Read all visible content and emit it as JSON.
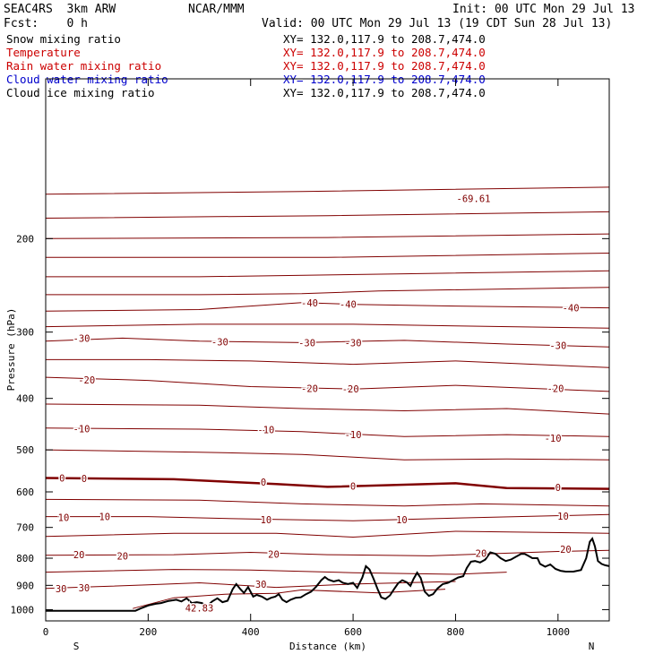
{
  "header": {
    "model": "SEAC4RS  3km ARW",
    "org": "NCAR/MMM",
    "init": "Init: 00 UTC Mon 29 Jul 13",
    "fcst": "Fcst:    0 h",
    "valid": "Valid: 00 UTC Mon 29 Jul 13 (19 CDT Sun 28 Jul 13)"
  },
  "fields": [
    {
      "name": "Snow mixing ratio",
      "color": "#000000",
      "xy": "XY= 132.0,117.9 to 208.7,474.0"
    },
    {
      "name": "Temperature",
      "color": "#cc0000",
      "xy": "XY= 132.0,117.9 to 208.7,474.0"
    },
    {
      "name": "Rain water mixing ratio",
      "color": "#cc0000",
      "xy": "XY= 132.0,117.9 to 208.7,474.0"
    },
    {
      "name": "Cloud water mixing ratio",
      "color": "#0000cc",
      "xy": "XY= 132.0,117.9 to 208.7,474.0"
    },
    {
      "name": "Cloud ice mixing ratio",
      "color": "#000000",
      "xy": "XY= 132.0,117.9 to 208.7,474.0"
    }
  ],
  "chart_data": {
    "type": "line",
    "xlabel": "Distance (km)",
    "ylabel": "Pressure (hPa)",
    "xlim": [
      0,
      1100
    ],
    "ylim": [
      1050,
      100
    ],
    "y_scale": "log",
    "xticks": [
      0,
      200,
      400,
      600,
      800,
      1000
    ],
    "yticks": [
      200,
      300,
      400,
      500,
      600,
      700,
      800,
      900,
      1000
    ],
    "end_labels": {
      "left": "S",
      "right": "N"
    },
    "isotherm_color": "#800000",
    "isotherm_interval": 5,
    "freezing_level_bold": true,
    "isotherms": [
      {
        "temp": -70,
        "p": [
          [
            0,
            165
          ],
          [
            500,
            163
          ],
          [
            1100,
            160
          ]
        ]
      },
      {
        "temp": -65,
        "p": [
          [
            0,
            183
          ],
          [
            550,
            181
          ],
          [
            1100,
            178
          ]
        ]
      },
      {
        "temp": -60,
        "p": [
          [
            0,
            200
          ],
          [
            550,
            199
          ],
          [
            1100,
            196
          ]
        ]
      },
      {
        "temp": -55,
        "p": [
          [
            0,
            217
          ],
          [
            550,
            217
          ],
          [
            1100,
            213
          ]
        ]
      },
      {
        "temp": -50,
        "p": [
          [
            0,
            236
          ],
          [
            300,
            236
          ],
          [
            700,
            233
          ],
          [
            1100,
            230
          ]
        ]
      },
      {
        "temp": -45,
        "p": [
          [
            0,
            255
          ],
          [
            300,
            255
          ],
          [
            500,
            254
          ],
          [
            650,
            251
          ],
          [
            1100,
            247
          ]
        ]
      },
      {
        "temp": -40,
        "p": [
          [
            0,
            274
          ],
          [
            300,
            272
          ],
          [
            500,
            264
          ],
          [
            600,
            266
          ],
          [
            800,
            268
          ],
          [
            1100,
            270
          ]
        ]
      },
      {
        "temp": -35,
        "p": [
          [
            0,
            293
          ],
          [
            300,
            290
          ],
          [
            600,
            290
          ],
          [
            800,
            292
          ],
          [
            1100,
            295
          ]
        ]
      },
      {
        "temp": -30,
        "p": [
          [
            0,
            312
          ],
          [
            150,
            308
          ],
          [
            300,
            312
          ],
          [
            500,
            314
          ],
          [
            700,
            311
          ],
          [
            900,
            316
          ],
          [
            1100,
            320
          ]
        ]
      },
      {
        "temp": -25,
        "p": [
          [
            0,
            338
          ],
          [
            200,
            338
          ],
          [
            400,
            340
          ],
          [
            600,
            345
          ],
          [
            800,
            340
          ],
          [
            1100,
            350
          ]
        ]
      },
      {
        "temp": -20,
        "p": [
          [
            0,
            365
          ],
          [
            200,
            370
          ],
          [
            400,
            380
          ],
          [
            600,
            384
          ],
          [
            800,
            378
          ],
          [
            1100,
            388
          ]
        ]
      },
      {
        "temp": -15,
        "p": [
          [
            0,
            410
          ],
          [
            300,
            412
          ],
          [
            500,
            418
          ],
          [
            700,
            422
          ],
          [
            900,
            418
          ],
          [
            1100,
            428
          ]
        ]
      },
      {
        "temp": -10,
        "p": [
          [
            0,
            455
          ],
          [
            300,
            457
          ],
          [
            500,
            462
          ],
          [
            700,
            472
          ],
          [
            900,
            468
          ],
          [
            1100,
            472
          ]
        ]
      },
      {
        "temp": -5,
        "p": [
          [
            0,
            500
          ],
          [
            300,
            505
          ],
          [
            500,
            510
          ],
          [
            700,
            522
          ],
          [
            900,
            520
          ],
          [
            1100,
            522
          ]
        ]
      },
      {
        "temp": 0,
        "p": [
          [
            0,
            565
          ],
          [
            250,
            568
          ],
          [
            450,
            580
          ],
          [
            550,
            587
          ],
          [
            800,
            578
          ],
          [
            900,
            590
          ],
          [
            1100,
            592
          ]
        ]
      },
      {
        "temp": 5,
        "p": [
          [
            0,
            620
          ],
          [
            300,
            622
          ],
          [
            500,
            632
          ],
          [
            700,
            638
          ],
          [
            850,
            632
          ],
          [
            1100,
            638
          ]
        ]
      },
      {
        "temp": 10,
        "p": [
          [
            0,
            668
          ],
          [
            200,
            668
          ],
          [
            400,
            675
          ],
          [
            600,
            680
          ],
          [
            800,
            672
          ],
          [
            1100,
            662
          ]
        ]
      },
      {
        "temp": 15,
        "p": [
          [
            0,
            728
          ],
          [
            250,
            718
          ],
          [
            450,
            718
          ],
          [
            600,
            730
          ],
          [
            800,
            712
          ],
          [
            1100,
            718
          ]
        ]
      },
      {
        "temp": 20,
        "p": [
          [
            0,
            790
          ],
          [
            250,
            788
          ],
          [
            400,
            780
          ],
          [
            550,
            788
          ],
          [
            750,
            792
          ],
          [
            1000,
            777
          ],
          [
            1100,
            773
          ]
        ]
      },
      {
        "temp": 25,
        "p": [
          [
            0,
            850
          ],
          [
            250,
            840
          ],
          [
            400,
            842
          ],
          [
            600,
            852
          ],
          [
            800,
            858
          ],
          [
            900,
            850
          ]
        ]
      },
      {
        "temp": 30,
        "p": [
          [
            0,
            912
          ],
          [
            100,
            905
          ],
          [
            200,
            898
          ],
          [
            300,
            890
          ],
          [
            450,
            908
          ],
          [
            600,
            895
          ],
          [
            800,
            885
          ]
        ]
      },
      {
        "temp": 35,
        "p": [
          [
            170,
            995
          ],
          [
            250,
            950
          ],
          [
            350,
            935
          ],
          [
            450,
            932
          ],
          [
            500,
            918
          ],
          [
            650,
            930
          ],
          [
            780,
            915
          ]
        ]
      }
    ],
    "contour_labels": [
      {
        "text": "-69.61",
        "x": 835,
        "p": 168
      },
      {
        "text": "-40",
        "x": 515,
        "p": 264
      },
      {
        "text": "-40",
        "x": 590,
        "p": 266
      },
      {
        "text": "-40",
        "x": 1025,
        "p": 270
      },
      {
        "text": "-30",
        "x": 70,
        "p": 308
      },
      {
        "text": "-30",
        "x": 340,
        "p": 313
      },
      {
        "text": "-30",
        "x": 510,
        "p": 314
      },
      {
        "text": "-30",
        "x": 600,
        "p": 314
      },
      {
        "text": "-30",
        "x": 1000,
        "p": 318
      },
      {
        "text": "-20",
        "x": 80,
        "p": 369
      },
      {
        "text": "-20",
        "x": 515,
        "p": 383
      },
      {
        "text": "-20",
        "x": 595,
        "p": 384
      },
      {
        "text": "-20",
        "x": 995,
        "p": 383
      },
      {
        "text": "-10",
        "x": 70,
        "p": 456
      },
      {
        "text": "-10",
        "x": 430,
        "p": 458
      },
      {
        "text": "-10",
        "x": 600,
        "p": 468
      },
      {
        "text": "-10",
        "x": 990,
        "p": 475
      },
      {
        "text": "0",
        "x": 32,
        "p": 565
      },
      {
        "text": "0",
        "x": 75,
        "p": 566
      },
      {
        "text": "0",
        "x": 425,
        "p": 575
      },
      {
        "text": "0",
        "x": 600,
        "p": 585
      },
      {
        "text": "0",
        "x": 1000,
        "p": 588
      },
      {
        "text": "10",
        "x": 35,
        "p": 670
      },
      {
        "text": "10",
        "x": 115,
        "p": 667
      },
      {
        "text": "10",
        "x": 430,
        "p": 677
      },
      {
        "text": "10",
        "x": 695,
        "p": 677
      },
      {
        "text": "10",
        "x": 1010,
        "p": 666
      },
      {
        "text": "20",
        "x": 65,
        "p": 788
      },
      {
        "text": "20",
        "x": 150,
        "p": 792
      },
      {
        "text": "20",
        "x": 445,
        "p": 786
      },
      {
        "text": "20",
        "x": 850,
        "p": 783
      },
      {
        "text": "20",
        "x": 1015,
        "p": 770
      },
      {
        "text": "30",
        "x": 30,
        "p": 913
      },
      {
        "text": "30",
        "x": 75,
        "p": 910
      },
      {
        "text": "30",
        "x": 420,
        "p": 895
      },
      {
        "text": "42.83",
        "x": 300,
        "p": 992
      }
    ],
    "terrain": [
      [
        0,
        1005
      ],
      [
        175,
        1005
      ],
      [
        185,
        995
      ],
      [
        200,
        982
      ],
      [
        215,
        975
      ],
      [
        225,
        972
      ],
      [
        240,
        963
      ],
      [
        255,
        958
      ],
      [
        265,
        965
      ],
      [
        275,
        952
      ],
      [
        285,
        972
      ],
      [
        295,
        968
      ],
      [
        305,
        972
      ],
      [
        315,
        985
      ],
      [
        325,
        965
      ],
      [
        335,
        952
      ],
      [
        345,
        968
      ],
      [
        355,
        962
      ],
      [
        365,
        915
      ],
      [
        372,
        895
      ],
      [
        380,
        915
      ],
      [
        387,
        930
      ],
      [
        395,
        907
      ],
      [
        405,
        945
      ],
      [
        412,
        938
      ],
      [
        422,
        945
      ],
      [
        432,
        958
      ],
      [
        440,
        950
      ],
      [
        448,
        945
      ],
      [
        455,
        935
      ],
      [
        462,
        958
      ],
      [
        470,
        968
      ],
      [
        478,
        958
      ],
      [
        488,
        950
      ],
      [
        498,
        948
      ],
      [
        508,
        935
      ],
      [
        518,
        925
      ],
      [
        528,
        905
      ],
      [
        538,
        880
      ],
      [
        545,
        868
      ],
      [
        552,
        878
      ],
      [
        562,
        885
      ],
      [
        572,
        880
      ],
      [
        580,
        890
      ],
      [
        590,
        895
      ],
      [
        600,
        890
      ],
      [
        608,
        910
      ],
      [
        618,
        870
      ],
      [
        625,
        828
      ],
      [
        632,
        840
      ],
      [
        640,
        875
      ],
      [
        648,
        915
      ],
      [
        655,
        948
      ],
      [
        663,
        955
      ],
      [
        672,
        940
      ],
      [
        680,
        915
      ],
      [
        688,
        892
      ],
      [
        696,
        880
      ],
      [
        705,
        888
      ],
      [
        712,
        902
      ],
      [
        718,
        875
      ],
      [
        725,
        852
      ],
      [
        732,
        872
      ],
      [
        740,
        925
      ],
      [
        748,
        942
      ],
      [
        756,
        935
      ],
      [
        765,
        912
      ],
      [
        775,
        895
      ],
      [
        785,
        890
      ],
      [
        795,
        880
      ],
      [
        805,
        870
      ],
      [
        815,
        865
      ],
      [
        822,
        835
      ],
      [
        830,
        812
      ],
      [
        838,
        810
      ],
      [
        848,
        815
      ],
      [
        858,
        805
      ],
      [
        868,
        780
      ],
      [
        878,
        785
      ],
      [
        888,
        800
      ],
      [
        898,
        810
      ],
      [
        908,
        805
      ],
      [
        918,
        795
      ],
      [
        928,
        785
      ],
      [
        935,
        785
      ],
      [
        942,
        792
      ],
      [
        950,
        800
      ],
      [
        960,
        800
      ],
      [
        965,
        820
      ],
      [
        975,
        830
      ],
      [
        985,
        822
      ],
      [
        995,
        838
      ],
      [
        1005,
        845
      ],
      [
        1015,
        848
      ],
      [
        1030,
        848
      ],
      [
        1045,
        842
      ],
      [
        1055,
        800
      ],
      [
        1062,
        745
      ],
      [
        1067,
        735
      ],
      [
        1072,
        760
      ],
      [
        1078,
        810
      ],
      [
        1085,
        820
      ],
      [
        1092,
        825
      ],
      [
        1100,
        828
      ]
    ]
  }
}
